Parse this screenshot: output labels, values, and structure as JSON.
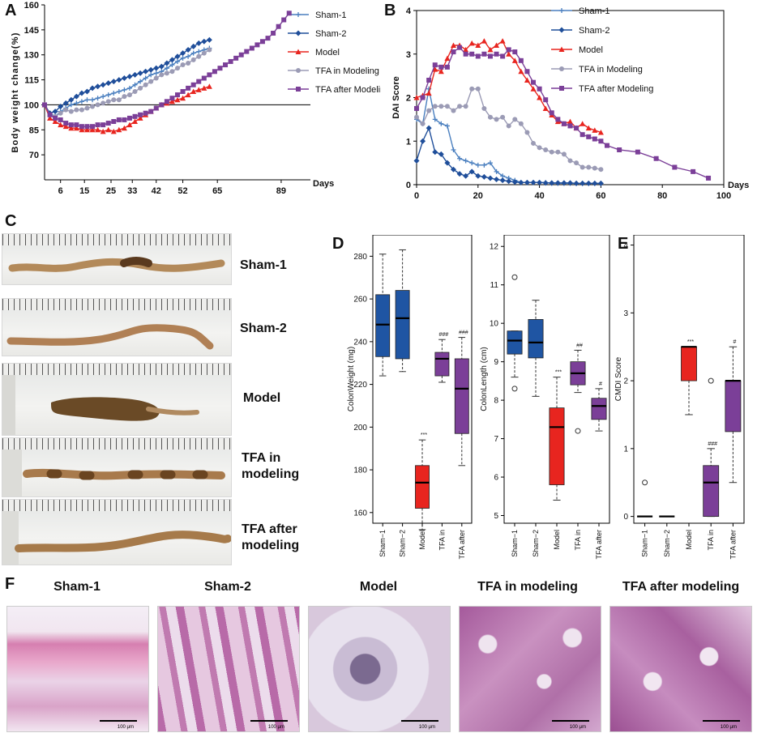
{
  "panel_letters": {
    "a": "A",
    "b": "B",
    "c": "C",
    "d": "D",
    "e": "E",
    "f": "F"
  },
  "colors": {
    "sham1": "#4a7fbf",
    "sham2": "#1f4e9a",
    "model": "#e8251f",
    "tfa_in": "#9b9bb5",
    "tfa_after": "#7b3f98",
    "box_blue": "#1f55a3",
    "box_red": "#e8251f",
    "box_purple": "#7b3f98"
  },
  "chart_data": [
    {
      "id": "A",
      "type": "line",
      "xlabel": "Days",
      "ylabel": "Body weight change(%)",
      "xlim": [
        0,
        100
      ],
      "ylim": [
        55,
        160
      ],
      "xticks": [
        6,
        15,
        25,
        33,
        42,
        52,
        65,
        89
      ],
      "yticks": [
        70,
        85,
        100,
        115,
        130,
        145,
        160
      ],
      "reference_line": 100,
      "series": [
        {
          "name": "Sham-1",
          "key": "sham1",
          "marker": "plus",
          "x": [
            0,
            2,
            4,
            6,
            8,
            10,
            12,
            14,
            16,
            18,
            20,
            22,
            24,
            26,
            28,
            30,
            32,
            34,
            36,
            38,
            40,
            42,
            44,
            46,
            48,
            50,
            52,
            54,
            56,
            58,
            60,
            62
          ],
          "y": [
            100,
            95,
            93,
            96,
            98,
            100,
            101,
            102,
            103,
            103,
            104,
            105,
            106,
            107,
            108,
            109,
            110,
            112,
            114,
            116,
            118,
            119,
            120,
            122,
            124,
            126,
            128,
            129,
            131,
            132,
            133,
            134
          ]
        },
        {
          "name": "Sham-2",
          "key": "sham2",
          "marker": "diamond",
          "x": [
            0,
            2,
            4,
            6,
            8,
            10,
            12,
            14,
            16,
            18,
            20,
            22,
            24,
            26,
            28,
            30,
            32,
            34,
            36,
            38,
            40,
            42,
            44,
            46,
            48,
            50,
            52,
            54,
            56,
            58,
            60,
            62
          ],
          "y": [
            100,
            95,
            96,
            99,
            101,
            103,
            105,
            107,
            108,
            110,
            111,
            112,
            113,
            114,
            115,
            116,
            117,
            118,
            119,
            120,
            121,
            122,
            123,
            125,
            127,
            129,
            131,
            133,
            135,
            137,
            138,
            139
          ]
        },
        {
          "name": "Model",
          "key": "model",
          "marker": "triangle",
          "x": [
            0,
            2,
            4,
            6,
            8,
            10,
            12,
            14,
            16,
            18,
            20,
            22,
            24,
            26,
            28,
            30,
            32,
            34,
            36,
            38,
            40,
            42,
            44,
            46,
            48,
            50,
            52,
            54,
            56,
            58,
            60,
            62
          ],
          "y": [
            100,
            92,
            90,
            88,
            87,
            86,
            86,
            85,
            85,
            85,
            85,
            84,
            85,
            84,
            85,
            86,
            88,
            90,
            92,
            94,
            96,
            98,
            100,
            101,
            102,
            103,
            104,
            106,
            108,
            109,
            110,
            111
          ]
        },
        {
          "name": "TFA in Modeling",
          "key": "tfa_in",
          "marker": "circle",
          "x": [
            0,
            2,
            4,
            6,
            8,
            10,
            12,
            14,
            16,
            18,
            20,
            22,
            24,
            26,
            28,
            30,
            32,
            34,
            36,
            38,
            40,
            42,
            44,
            46,
            48,
            50,
            52,
            54,
            56,
            58,
            60,
            62
          ],
          "y": [
            100,
            94,
            93,
            95,
            97,
            96,
            97,
            97,
            98,
            99,
            100,
            101,
            102,
            103,
            103,
            105,
            106,
            108,
            110,
            112,
            114,
            116,
            118,
            119,
            120,
            122,
            124,
            125,
            127,
            129,
            131,
            133
          ]
        },
        {
          "name": "TFA after Modeling",
          "key": "tfa_after",
          "marker": "square",
          "x": [
            0,
            2,
            4,
            6,
            8,
            10,
            12,
            14,
            16,
            18,
            20,
            22,
            24,
            26,
            28,
            30,
            32,
            34,
            36,
            38,
            40,
            42,
            44,
            46,
            48,
            50,
            52,
            54,
            56,
            58,
            60,
            62,
            64,
            66,
            68,
            70,
            72,
            74,
            76,
            78,
            80,
            82,
            84,
            86,
            88,
            90,
            92
          ],
          "y": [
            100,
            94,
            92,
            91,
            89,
            88,
            88,
            87,
            87,
            87,
            88,
            88,
            89,
            90,
            91,
            91,
            92,
            93,
            94,
            95,
            96,
            98,
            100,
            102,
            104,
            106,
            108,
            110,
            112,
            114,
            116,
            118,
            120,
            122,
            124,
            126,
            128,
            130,
            132,
            134,
            136,
            138,
            140,
            143,
            147,
            151,
            155
          ]
        }
      ]
    },
    {
      "id": "B",
      "type": "line",
      "xlabel": "Days",
      "ylabel": "DAI Score",
      "xlim": [
        0,
        100
      ],
      "ylim": [
        0,
        4
      ],
      "xticks": [
        0,
        20,
        40,
        60,
        80,
        100
      ],
      "yticks": [
        0,
        1,
        2,
        3,
        4
      ],
      "series": [
        {
          "name": "Sham-1",
          "key": "sham1",
          "marker": "plus",
          "x": [
            0,
            2,
            4,
            6,
            8,
            10,
            12,
            14,
            16,
            18,
            20,
            22,
            24,
            26,
            28,
            30,
            32,
            34,
            36,
            38,
            40,
            42,
            44,
            46,
            48,
            50,
            52,
            54,
            56,
            58,
            60
          ],
          "y": [
            1.5,
            1.4,
            2.2,
            1.5,
            1.4,
            1.35,
            0.8,
            0.6,
            0.55,
            0.5,
            0.45,
            0.45,
            0.5,
            0.3,
            0.2,
            0.15,
            0.1,
            0.05,
            0.05,
            0.05,
            0.05,
            0.05,
            0.03,
            0.03,
            0.03,
            0.03,
            0.03,
            0.03,
            0.03,
            0.03,
            0.03
          ]
        },
        {
          "name": "Sham-2",
          "key": "sham2",
          "marker": "diamond",
          "x": [
            0,
            2,
            4,
            6,
            8,
            10,
            12,
            14,
            16,
            18,
            20,
            22,
            24,
            26,
            28,
            30,
            32,
            34,
            36,
            38,
            40,
            42,
            44,
            46,
            48,
            50,
            52,
            54,
            56,
            58,
            60
          ],
          "y": [
            0.55,
            1.0,
            1.3,
            0.75,
            0.7,
            0.5,
            0.35,
            0.25,
            0.2,
            0.3,
            0.2,
            0.18,
            0.15,
            0.12,
            0.1,
            0.08,
            0.06,
            0.05,
            0.05,
            0.05,
            0.05,
            0.04,
            0.04,
            0.04,
            0.04,
            0.04,
            0.03,
            0.03,
            0.03,
            0.03,
            0.03
          ]
        },
        {
          "name": "Model",
          "key": "model",
          "marker": "triangle",
          "x": [
            0,
            2,
            4,
            6,
            8,
            10,
            12,
            14,
            16,
            18,
            20,
            22,
            24,
            26,
            28,
            30,
            32,
            34,
            36,
            38,
            40,
            42,
            44,
            46,
            48,
            50,
            52,
            54,
            56,
            58,
            60
          ],
          "y": [
            2.0,
            2.05,
            2.1,
            2.65,
            2.6,
            2.9,
            3.2,
            3.2,
            3.1,
            3.25,
            3.2,
            3.3,
            3.1,
            3.2,
            3.3,
            3.0,
            2.85,
            2.6,
            2.4,
            2.2,
            2.0,
            1.75,
            1.6,
            1.45,
            1.4,
            1.45,
            1.3,
            1.4,
            1.3,
            1.25,
            1.2
          ]
        },
        {
          "name": "TFA in Modeling",
          "key": "tfa_in",
          "marker": "circle",
          "x": [
            0,
            2,
            4,
            6,
            8,
            10,
            12,
            14,
            16,
            18,
            20,
            22,
            24,
            26,
            28,
            30,
            32,
            34,
            36,
            38,
            40,
            42,
            44,
            46,
            48,
            50,
            52,
            54,
            56,
            58,
            60
          ],
          "y": [
            1.55,
            1.4,
            1.7,
            1.8,
            1.8,
            1.8,
            1.7,
            1.8,
            1.8,
            2.2,
            2.2,
            1.75,
            1.55,
            1.5,
            1.55,
            1.35,
            1.5,
            1.4,
            1.2,
            0.95,
            0.85,
            0.8,
            0.75,
            0.75,
            0.7,
            0.55,
            0.5,
            0.4,
            0.4,
            0.38,
            0.35
          ]
        },
        {
          "name": "TFA after Modeling",
          "key": "tfa_after",
          "marker": "square",
          "x": [
            0,
            2,
            4,
            6,
            8,
            10,
            12,
            14,
            16,
            18,
            20,
            22,
            24,
            26,
            28,
            30,
            32,
            34,
            36,
            38,
            40,
            42,
            44,
            46,
            48,
            50,
            52,
            54,
            56,
            58,
            60,
            62,
            66,
            72,
            78,
            84,
            90,
            95
          ],
          "y": [
            1.75,
            2.0,
            2.4,
            2.75,
            2.7,
            2.7,
            3.05,
            3.15,
            3.0,
            3.0,
            2.95,
            3.0,
            2.95,
            3.0,
            2.95,
            3.1,
            3.05,
            2.85,
            2.6,
            2.35,
            2.2,
            1.95,
            1.65,
            1.5,
            1.4,
            1.35,
            1.3,
            1.15,
            1.1,
            1.05,
            1.0,
            0.9,
            0.8,
            0.75,
            0.6,
            0.4,
            0.3,
            0.15
          ]
        }
      ]
    },
    {
      "id": "D1",
      "type": "box",
      "ylabel": "ColonWeight (mg)",
      "ylim": [
        155,
        290
      ],
      "yticks": [
        160,
        180,
        200,
        220,
        240,
        260,
        280
      ],
      "categories": [
        "Sham−1",
        "Sham−2",
        "Model",
        "TFA in",
        "TFA after"
      ],
      "boxes": [
        {
          "min": 224,
          "q1": 233,
          "median": 248,
          "q3": 262,
          "max": 281,
          "color": "box_blue",
          "sig": ""
        },
        {
          "min": 226,
          "q1": 232,
          "median": 251,
          "q3": 264,
          "max": 283,
          "color": "box_blue",
          "sig": ""
        },
        {
          "min": 152,
          "q1": 162,
          "median": 174,
          "q3": 182,
          "max": 194,
          "color": "box_red",
          "sig": "***"
        },
        {
          "min": 221,
          "q1": 224,
          "median": 232,
          "q3": 235,
          "max": 241,
          "color": "box_purple",
          "sig": "###"
        },
        {
          "min": 182,
          "q1": 197,
          "median": 218,
          "q3": 232,
          "max": 242,
          "color": "box_purple",
          "sig": "###"
        }
      ],
      "outliers": []
    },
    {
      "id": "D2",
      "type": "box",
      "ylabel": "ColonLength (cm)",
      "ylim": [
        4.8,
        12.3
      ],
      "yticks": [
        5,
        6,
        7,
        8,
        9,
        10,
        11,
        12
      ],
      "categories": [
        "Sham−1",
        "Sham−2",
        "Model",
        "TFA in",
        "TFA after"
      ],
      "boxes": [
        {
          "min": 8.6,
          "q1": 9.2,
          "median": 9.55,
          "q3": 9.8,
          "max": 9.8,
          "color": "box_blue",
          "sig": ""
        },
        {
          "min": 8.1,
          "q1": 9.1,
          "median": 9.5,
          "q3": 10.1,
          "max": 10.6,
          "color": "box_blue",
          "sig": ""
        },
        {
          "min": 5.4,
          "q1": 5.8,
          "median": 7.3,
          "q3": 7.8,
          "max": 8.6,
          "color": "box_red",
          "sig": "***"
        },
        {
          "min": 8.2,
          "q1": 8.4,
          "median": 8.7,
          "q3": 9.0,
          "max": 9.3,
          "color": "box_purple",
          "sig": "##"
        },
        {
          "min": 7.2,
          "q1": 7.5,
          "median": 7.85,
          "q3": 8.05,
          "max": 8.3,
          "color": "box_purple",
          "sig": "#"
        }
      ],
      "outliers": [
        {
          "box": 0,
          "value": 11.2
        },
        {
          "box": 0,
          "value": 8.3
        },
        {
          "box": 3,
          "value": 7.2
        }
      ]
    },
    {
      "id": "E",
      "type": "box",
      "ylabel": "CMDI Score",
      "ylim": [
        -0.1,
        4.15
      ],
      "yticks": [
        0,
        1,
        2,
        3,
        4
      ],
      "categories": [
        "Sham−1",
        "Sham−2",
        "Model",
        "TFA in",
        "TFA after"
      ],
      "boxes": [
        {
          "min": 0,
          "q1": 0,
          "median": 0,
          "q3": 0,
          "max": 0,
          "color": "box_blue",
          "sig": ""
        },
        {
          "min": 0,
          "q1": 0,
          "median": 0,
          "q3": 0,
          "max": 0,
          "color": "box_blue",
          "sig": ""
        },
        {
          "min": 1.5,
          "q1": 2.0,
          "median": 2.5,
          "q3": 2.5,
          "max": 2.5,
          "color": "box_red",
          "sig": "***"
        },
        {
          "min": 0,
          "q1": 0,
          "median": 0.5,
          "q3": 0.75,
          "max": 1.0,
          "color": "box_purple",
          "sig": "###"
        },
        {
          "min": 0.5,
          "q1": 1.25,
          "median": 2.0,
          "q3": 2.0,
          "max": 2.5,
          "color": "box_purple",
          "sig": "#"
        }
      ],
      "outliers": [
        {
          "box": 0,
          "value": 0.5
        },
        {
          "box": 3,
          "value": 2.0
        }
      ]
    }
  ],
  "colon_labels": [
    "Sham-1",
    "Sham-2",
    "Model",
    "TFA in modeling",
    "TFA after modeling"
  ],
  "histology": {
    "titles": [
      "Sham-1",
      "Sham-2",
      "Model",
      "TFA in modeling",
      "TFA after modeling"
    ],
    "scalebar": "100 μm"
  }
}
